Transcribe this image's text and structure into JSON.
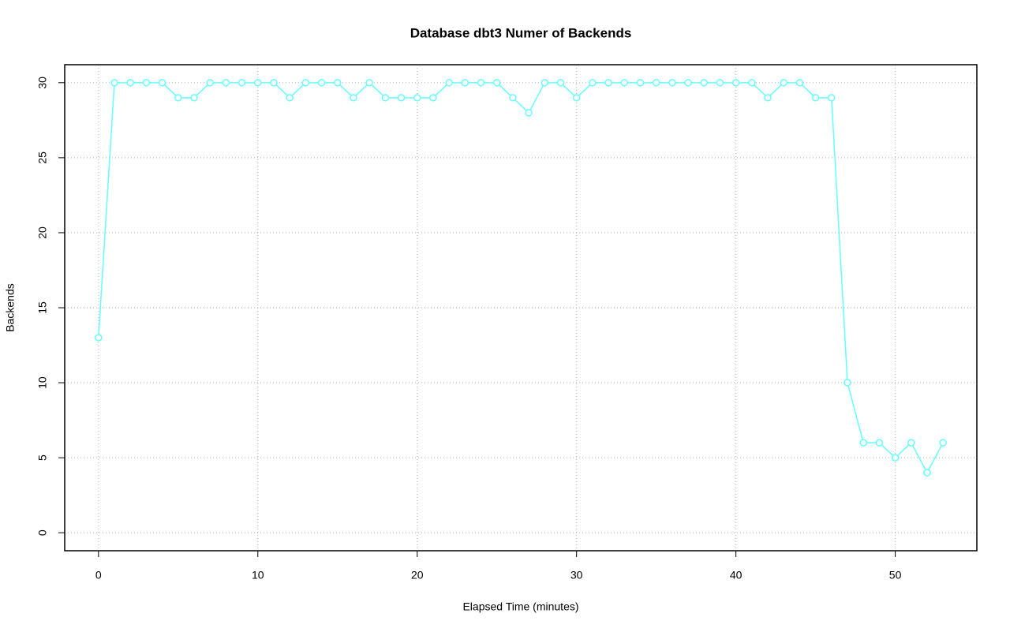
{
  "chart_data": {
    "type": "line",
    "title": "Database dbt3 Numer of Backends",
    "xlabel": "Elapsed Time (minutes)",
    "ylabel": "Backends",
    "x": [
      0,
      1,
      2,
      3,
      4,
      5,
      6,
      7,
      8,
      9,
      10,
      11,
      12,
      13,
      14,
      15,
      16,
      17,
      18,
      19,
      20,
      21,
      22,
      23,
      24,
      25,
      26,
      27,
      28,
      29,
      30,
      31,
      32,
      33,
      34,
      35,
      36,
      37,
      38,
      39,
      40,
      41,
      42,
      43,
      44,
      45,
      46,
      47,
      48,
      49,
      50,
      51,
      52,
      53
    ],
    "values": [
      13,
      30,
      30,
      30,
      30,
      29,
      29,
      30,
      30,
      30,
      30,
      30,
      29,
      30,
      30,
      30,
      29,
      30,
      29,
      29,
      29,
      29,
      30,
      30,
      30,
      30,
      29,
      28,
      30,
      30,
      29,
      30,
      30,
      30,
      30,
      30,
      30,
      30,
      30,
      30,
      30,
      30,
      29,
      30,
      30,
      29,
      29,
      10,
      6,
      6,
      5,
      6,
      4,
      6
    ],
    "color": "#66ffff",
    "xlim": [
      -2.12,
      55.12
    ],
    "xticks": [
      0,
      10,
      20,
      30,
      40,
      50
    ],
    "ylim": [
      -1.2,
      31.2
    ],
    "yticks": [
      0,
      5,
      10,
      15,
      20,
      25,
      30
    ],
    "grid": true
  }
}
